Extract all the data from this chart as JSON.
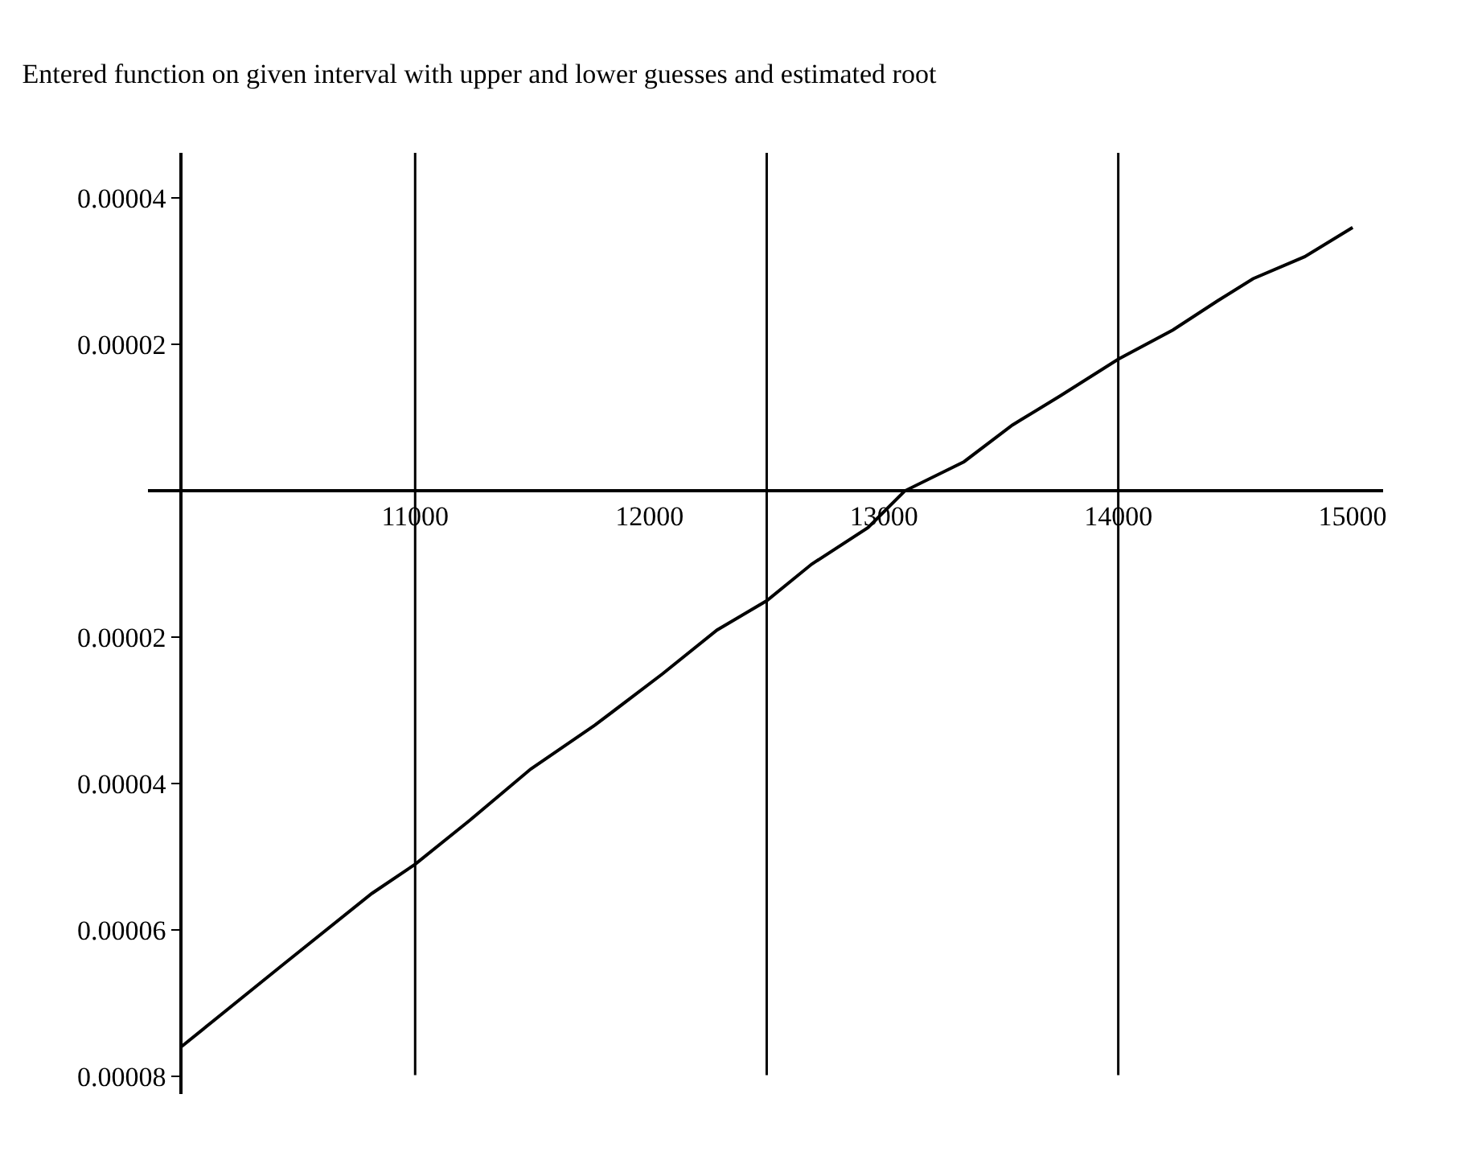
{
  "chart_data": {
    "type": "line",
    "title": "Entered function on given interval with upper and lower guesses and estimated root",
    "x": [
      10000,
      10425,
      10815,
      11000,
      11233,
      11493,
      11767,
      12055,
      12288,
      12500,
      12692,
      12932,
      13089,
      13342,
      13548,
      13753,
      14000,
      14233,
      14425,
      14575,
      14795,
      15000
    ],
    "series": [
      {
        "color": "#000000",
        "values": [
          -7.6e-05,
          -6.5e-05,
          -5.5e-05,
          -5.1e-05,
          -4.5e-05,
          -3.8e-05,
          -3.2e-05,
          -2.5e-05,
          -1.9e-05,
          -1.5e-05,
          -1e-05,
          -5e-06,
          0.0,
          4e-06,
          9e-06,
          1.3e-05,
          1.8e-05,
          2.2e-05,
          2.6e-05,
          2.9e-05,
          3.2e-05,
          3.6e-05
        ]
      }
    ],
    "xlim": [
      9860,
      15130
    ],
    "ylim": [
      -8.24e-05,
      4.62e-05
    ],
    "xticks": [
      11000,
      12000,
      13000,
      14000,
      15000
    ],
    "yticks": [
      {
        "value": -8e-05,
        "label": "0.00008"
      },
      {
        "value": -6e-05,
        "label": "0.00006"
      },
      {
        "value": -4e-05,
        "label": "0.00004"
      },
      {
        "value": -2e-05,
        "label": "0.00002"
      },
      {
        "value": 2e-05,
        "label": "0.00002"
      },
      {
        "value": 4e-05,
        "label": "0.00004"
      }
    ],
    "ref_lines": [
      {
        "axis": "x",
        "value": 11000,
        "color": "#000000"
      },
      {
        "axis": "x",
        "value": 12500,
        "color": "#000000"
      },
      {
        "axis": "x",
        "value": 14000,
        "color": "#000000"
      }
    ],
    "marker": "none",
    "line_style": "solid"
  }
}
